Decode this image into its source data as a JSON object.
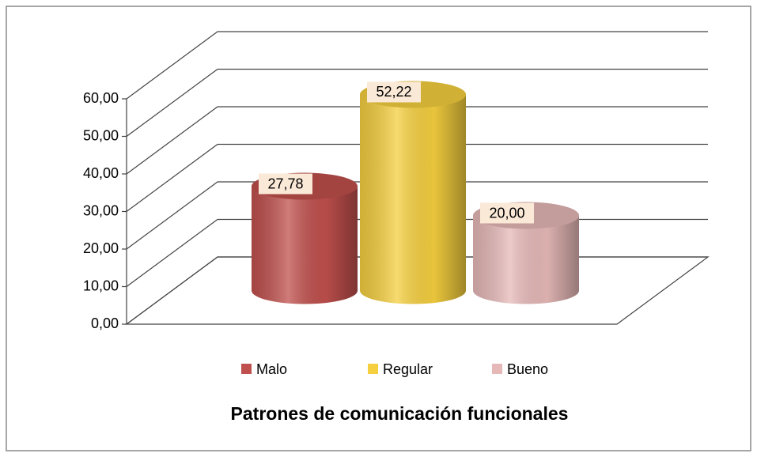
{
  "chart_data": {
    "type": "bar",
    "title": "Patrones de comunicación funcionales",
    "categories": [
      null
    ],
    "series": [
      {
        "name": "Malo",
        "color": "#c0504d",
        "values": [
          27.78
        ],
        "value_labels": [
          "27,78"
        ]
      },
      {
        "name": "Regular",
        "color": "#f5cf3f",
        "values": [
          52.22
        ],
        "value_labels": [
          "52,22"
        ]
      },
      {
        "name": "Bueno",
        "color": "#e6b9b8",
        "values": [
          20.0
        ],
        "value_labels": [
          "20,00"
        ]
      }
    ],
    "ylim": [
      0,
      60
    ],
    "yticks": [
      {
        "value": 0,
        "label": "0,00"
      },
      {
        "value": 10,
        "label": "10,00"
      },
      {
        "value": 20,
        "label": "20,00"
      },
      {
        "value": 30,
        "label": "30,00"
      },
      {
        "value": 40,
        "label": "40,00"
      },
      {
        "value": 50,
        "label": "50,00"
      },
      {
        "value": 60,
        "label": "60,00"
      }
    ],
    "grid": true,
    "legend": "bottom",
    "three_d": true
  }
}
